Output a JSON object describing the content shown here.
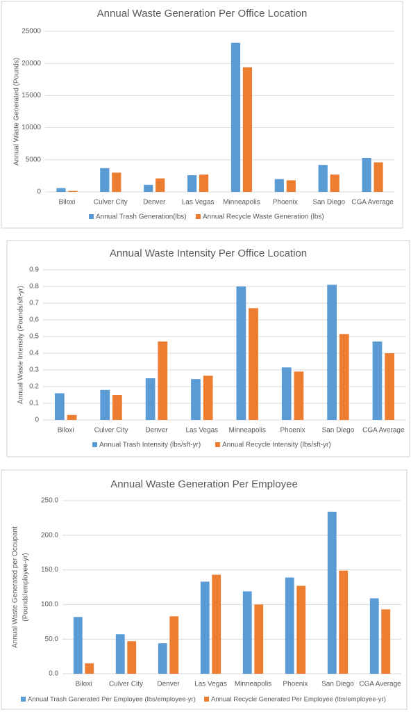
{
  "chart_data": [
    {
      "type": "bar",
      "title": "Annual Waste Generation Per Office Location",
      "y_label": [
        "Annual Waste Generated (Pounds)"
      ],
      "categories": [
        "Biloxi",
        "Culver City",
        "Denver",
        "Las Vegas",
        "Minneapolis",
        "Phoenix",
        "San Diego",
        "CGA Average"
      ],
      "series": [
        {
          "name": "Annual Trash Generation(lbs)",
          "color": "#5b9bd5",
          "values": [
            600,
            3700,
            1100,
            2600,
            23200,
            2000,
            4200,
            5300
          ]
        },
        {
          "name": "Annual Recycle Waste Generation (lbs)",
          "color": "#ed7d31",
          "values": [
            150,
            3000,
            2100,
            2700,
            19400,
            1800,
            2700,
            4600
          ]
        }
      ],
      "ylim": [
        0,
        25000
      ],
      "yticks": [
        0,
        5000,
        10000,
        15000,
        20000,
        25000
      ],
      "grid": true,
      "legend": "bottom"
    },
    {
      "type": "bar",
      "title": "Annual Waste Intensity Per Office Location",
      "y_label": [
        "Annual Waste Intensity (Pounds/sft-yr)"
      ],
      "categories": [
        "Biloxi",
        "Culver City",
        "Denver",
        "Las Vegas",
        "Minneapolis",
        "Phoenix",
        "San Diego",
        "CGA Average"
      ],
      "series": [
        {
          "name": "Annual Trash Intensity (lbs/sft-yr)",
          "color": "#5b9bd5",
          "values": [
            0.16,
            0.18,
            0.25,
            0.245,
            0.8,
            0.315,
            0.81,
            0.47
          ]
        },
        {
          "name": "Annual Recycle Intensity (lbs/sft-yr)",
          "color": "#ed7d31",
          "values": [
            0.03,
            0.15,
            0.47,
            0.265,
            0.67,
            0.29,
            0.515,
            0.4
          ]
        }
      ],
      "ylim": [
        0,
        0.9
      ],
      "yticks": [
        0,
        0.1,
        0.2,
        0.3,
        0.4,
        0.5,
        0.6,
        0.7,
        0.8,
        0.9
      ],
      "grid": true,
      "legend": "bottom"
    },
    {
      "type": "bar",
      "title": "Annual Waste Generation Per Employee",
      "y_label": [
        "Annual Waste Generated per Occupant",
        "(Pounds/employee-yr)"
      ],
      "categories": [
        "Biloxi",
        "Culver City",
        "Denver",
        "Las Vegas",
        "Minneapolis",
        "Phoenix",
        "San Diego",
        "CGA Average"
      ],
      "series": [
        {
          "name": "Annual Trash Generated Per Employee (lbs/employee-yr)",
          "color": "#5b9bd5",
          "values": [
            82,
            57,
            44,
            133,
            119,
            139,
            234,
            109
          ]
        },
        {
          "name": "Annual Recycle Generated Per Employee (lbs/employee-yr)",
          "color": "#ed7d31",
          "values": [
            15,
            47,
            83,
            143,
            100,
            127,
            149,
            93
          ]
        }
      ],
      "ylim": [
        0,
        250
      ],
      "yticks": [
        {
          "value": 0,
          "label": "0.0"
        },
        {
          "value": 50,
          "label": "50.0"
        },
        {
          "value": 100,
          "label": "100.0"
        },
        {
          "value": 150,
          "label": "150.0"
        },
        {
          "value": 200,
          "label": "200.0"
        },
        {
          "value": 250,
          "label": "250.0"
        }
      ],
      "grid": true,
      "legend": "bottom"
    }
  ]
}
